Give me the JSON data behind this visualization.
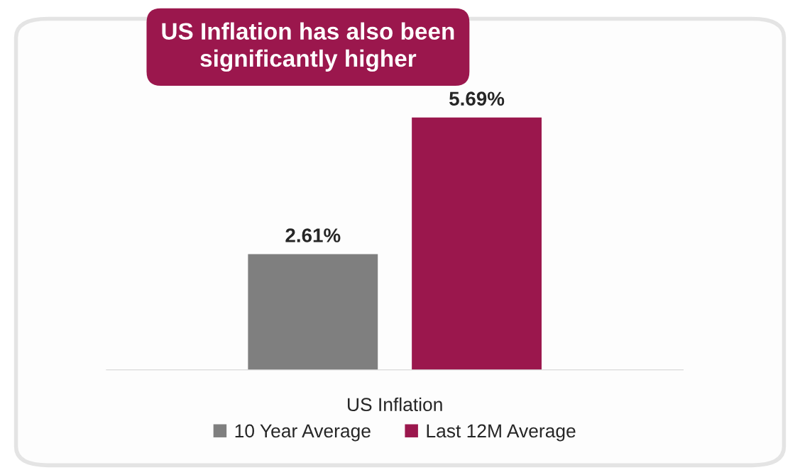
{
  "chart_data": {
    "type": "bar",
    "title": "US Inflation has also been significantly higher",
    "xlabel": "US Inflation",
    "categories": [
      null
    ],
    "series": [
      {
        "name": "10 Year Average",
        "color": "#7f7f7f",
        "values": [
          2.61
        ],
        "value_labels": [
          "2.61%"
        ]
      },
      {
        "name": "Last 12M Average",
        "color": "#9b174d",
        "values": [
          5.69
        ],
        "value_labels": [
          "5.69%"
        ]
      }
    ],
    "legend": "bottom",
    "grid": false,
    "tick_labels": "x"
  }
}
